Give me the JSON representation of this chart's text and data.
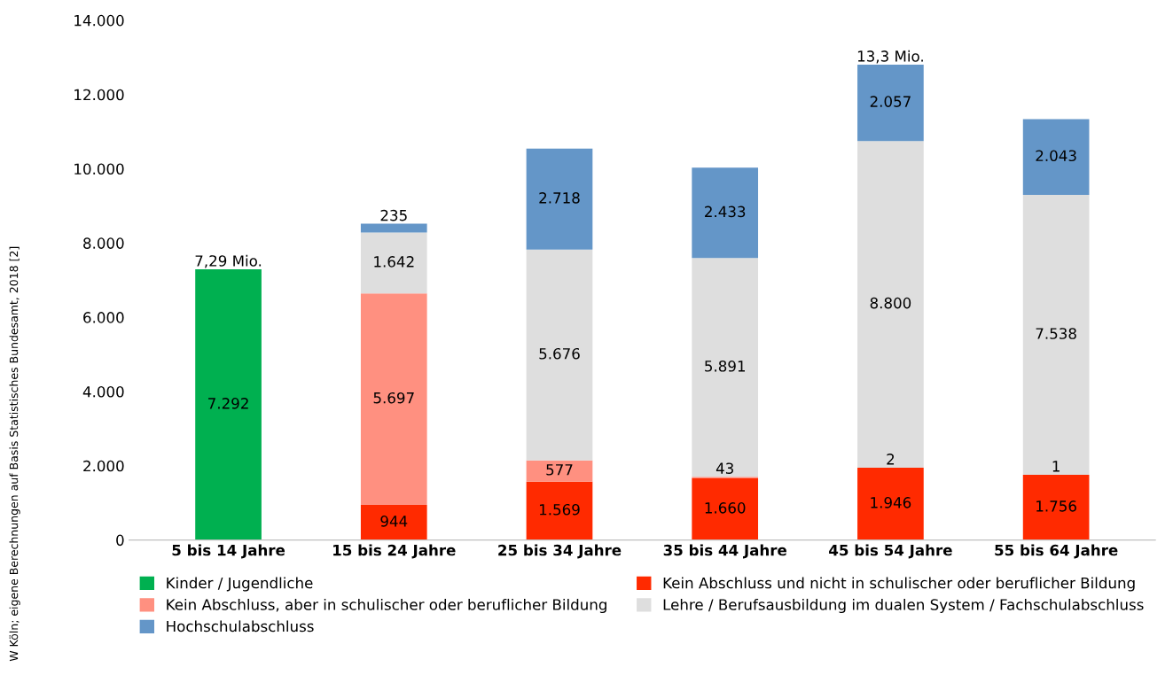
{
  "chart_data": {
    "type": "bar",
    "stacked": true,
    "categories": [
      "5 bis 14 Jahre",
      "15 bis 24 Jahre",
      "25 bis 34 Jahre",
      "35 bis 44 Jahre",
      "45 bis 54 Jahre",
      "55 bis 64 Jahre"
    ],
    "series": [
      {
        "name": "Kinder / Jugendliche",
        "color": "#00b050",
        "values": [
          7292,
          null,
          null,
          null,
          null,
          null
        ],
        "value_labels": [
          "7.292",
          null,
          null,
          null,
          null,
          null
        ]
      },
      {
        "name": "Kein Abschluss und nicht in schulischer oder beruflicher Bildung",
        "color": "#ff2a00",
        "values": [
          null,
          944,
          1569,
          1660,
          1946,
          1756
        ],
        "value_labels": [
          null,
          "944",
          "1.569",
          "1.660",
          "1.946",
          "1.756"
        ]
      },
      {
        "name": "Kein Abschluss, aber in schulischer oder beruflicher Bildung",
        "color": "#ff9080",
        "values": [
          null,
          5697,
          577,
          43,
          2,
          1
        ],
        "value_labels": [
          null,
          "5.697",
          "577",
          "43",
          "2",
          "1"
        ]
      },
      {
        "name": "Lehre / Berufsausbildung im dualen System / Fachschulabschluss",
        "color": "#dedede",
        "values": [
          null,
          1642,
          5676,
          5891,
          8800,
          7538
        ],
        "value_labels": [
          null,
          "1.642",
          "5.676",
          "5.891",
          "8.800",
          "7.538"
        ]
      },
      {
        "name": "Hochschulabschluss",
        "color": "#6496c8",
        "values": [
          null,
          235,
          2718,
          2433,
          2057,
          2043
        ],
        "value_labels": [
          null,
          "235",
          "2.718",
          "2.433",
          "2.057",
          "2.043"
        ]
      }
    ],
    "ylim": [
      0,
      14000
    ],
    "yticks": [
      {
        "value": 0,
        "label": "0"
      },
      {
        "value": 2000,
        "label": "2.000"
      },
      {
        "value": 4000,
        "label": "4.000"
      },
      {
        "value": 6000,
        "label": "6.000"
      },
      {
        "value": 8000,
        "label": "8.000"
      },
      {
        "value": 10000,
        "label": "10.000"
      },
      {
        "value": 12000,
        "label": "12.000"
      },
      {
        "value": 14000,
        "label": "14.000"
      }
    ],
    "grid": false,
    "legend": "bottom",
    "annotations": [
      {
        "text": "7,29 Mio.",
        "x": "5 bis 14 Jahre",
        "y": 7292
      },
      {
        "text": "13,3 Mio.",
        "x": "45 bis 54 Jahre",
        "y": 12805
      },
      "W Köln; eigene Berechnungen auf Basis Statistisches Bundesamt, 2018 [2]"
    ]
  }
}
